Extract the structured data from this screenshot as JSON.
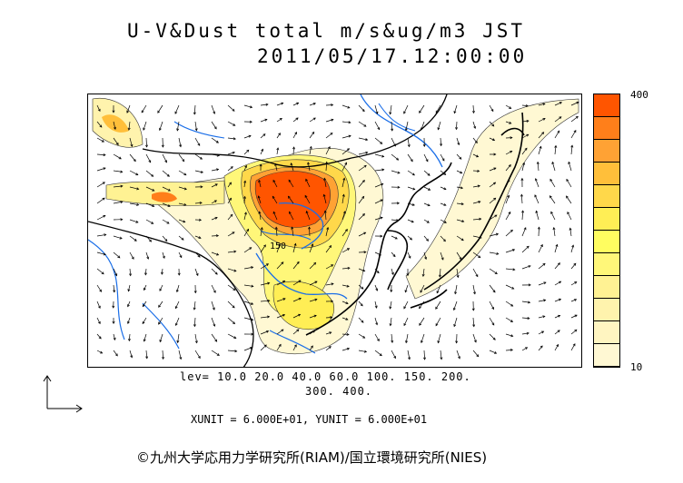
{
  "header": {
    "title_line1": "U-V&Dust total m/s&ug/m3 JST",
    "title_line2": "2011/05/17.12:00:00"
  },
  "contour_levels": {
    "line1": "lev= 10.0 20.0 40.0 60.0 100. 150. 200.",
    "line2": "300. 400."
  },
  "map": {
    "contour_label": "150"
  },
  "units_text": "XUNIT = 6.000E+01, YUNIT = 6.000E+01",
  "legend": {
    "max_label": "400",
    "min_label": "10",
    "colors": [
      "#ff5500",
      "#ff7f1a",
      "#ffa234",
      "#ffbf3a",
      "#ffd84a",
      "#ffee55",
      "#fffd60",
      "#fff779",
      "#fff293",
      "#fff3ad",
      "#fff5c1",
      "#fff8d3"
    ]
  },
  "footer": {
    "copyright": "©九州大学応用力学研究所(RIAM)/国立環境研究所(NIES)"
  }
}
